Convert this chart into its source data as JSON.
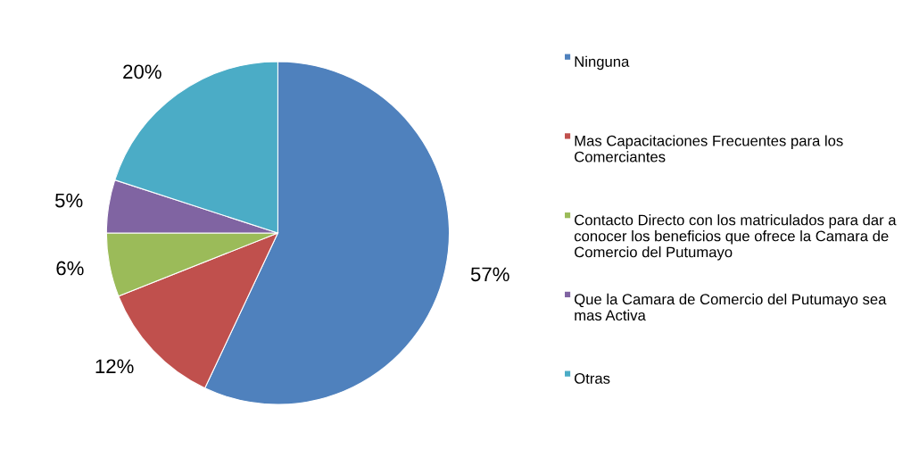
{
  "chart_data": {
    "type": "pie",
    "categories": [
      "Ninguna",
      "Mas Capacitaciones Frecuentes para los Comerciantes",
      "Contacto Directo con los matriculados para dar a conocer los beneficios que ofrece la Camara de Comercio del Putumayo",
      "Que la Camara de Comercio del Putumayo sea mas Activa",
      "Otras"
    ],
    "values": [
      57,
      12,
      6,
      5,
      20
    ],
    "value_labels": [
      "57%",
      "12%",
      "6%",
      "5%",
      "20%"
    ],
    "colors": [
      "#4f81bd",
      "#c0504d",
      "#9bbb59",
      "#8064a2",
      "#4bacc6"
    ],
    "legend": "right"
  }
}
